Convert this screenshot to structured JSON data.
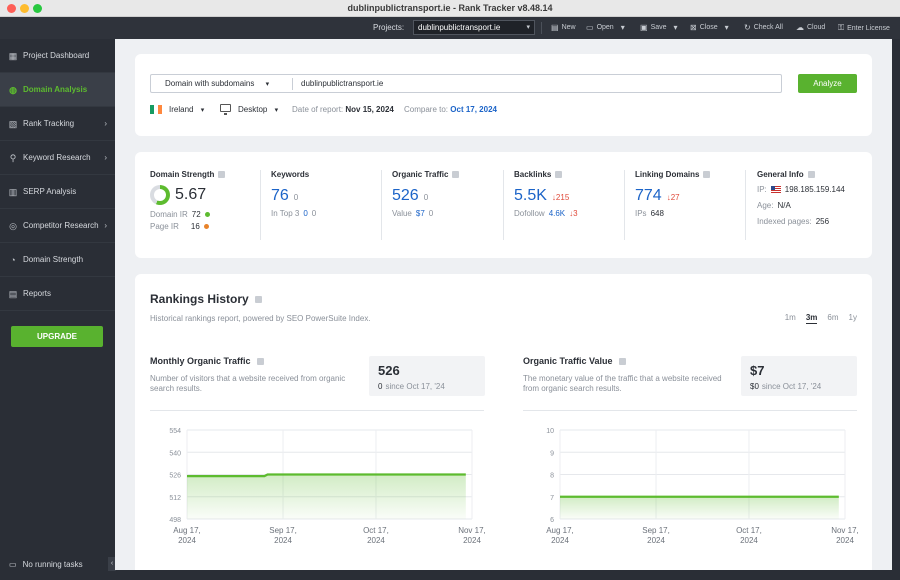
{
  "window": {
    "title": "dublinpublictransport.ie - Rank Tracker v8.48.14"
  },
  "toolbar": {
    "projects_label": "Projects:",
    "project_value": "dublinpublictransport.ie",
    "new": "New",
    "open": "Open",
    "save": "Save",
    "close": "Close",
    "check_all": "Check All",
    "cloud": "Cloud",
    "enter_license": "Enter License"
  },
  "sidebar": {
    "items": [
      {
        "label": "Project Dashboard",
        "icon": "dashboard-icon"
      },
      {
        "label": "Domain Analysis",
        "icon": "globe-icon",
        "active": true
      },
      {
        "label": "Rank Tracking",
        "icon": "chart-icon"
      },
      {
        "label": "Keyword Research",
        "icon": "search-icon"
      },
      {
        "label": "SERP Analysis",
        "icon": "bars-icon"
      },
      {
        "label": "Competitor Research",
        "icon": "target-icon"
      },
      {
        "label": "Domain Strength",
        "icon": "gauge-icon"
      },
      {
        "label": "Reports",
        "icon": "report-icon"
      }
    ],
    "upgrade": "UPGRADE",
    "running_tasks": "No running tasks"
  },
  "search": {
    "scope": "Domain with subdomains",
    "domain": "dublinpublictransport.ie",
    "analyze": "Analyze",
    "country": "Ireland",
    "device": "Desktop",
    "date_label": "Date of report:",
    "date_value": "Nov 15, 2024",
    "compare_label": "Compare to:",
    "compare_value": "Oct 17, 2024"
  },
  "metrics": {
    "domain_strength": {
      "title": "Domain Strength",
      "value": "5.67",
      "donut_fraction": 0.567,
      "domain_ir_label": "Domain IR",
      "domain_ir": "72",
      "page_ir_label": "Page IR",
      "page_ir": "16",
      "domain_ir_color": "#5dbb2f",
      "page_ir_color": "#e8832a"
    },
    "keywords": {
      "title": "Keywords",
      "value": "76",
      "delta": "0",
      "sub_label": "In Top 3",
      "sub_value": "0",
      "sub_delta": "0"
    },
    "organic_traffic": {
      "title": "Organic Traffic",
      "value": "526",
      "delta": "0",
      "sub_label": "Value",
      "sub_value": "$7",
      "sub_delta": "0"
    },
    "backlinks": {
      "title": "Backlinks",
      "value": "5.5K",
      "delta": "↓215",
      "sub_label": "Dofollow",
      "sub_value": "4.6K",
      "sub_delta": "↓3"
    },
    "linking_domains": {
      "title": "Linking Domains",
      "value": "774",
      "delta": "↓27",
      "sub_label": "IPs",
      "sub_value": "648"
    },
    "general_info": {
      "title": "General Info",
      "ip_label": "IP:",
      "ip": "198.185.159.144",
      "age_label": "Age:",
      "age": "N/A",
      "indexed_label": "Indexed pages:",
      "indexed": "256"
    }
  },
  "history": {
    "title": "Rankings History",
    "subtitle": "Historical rankings report, powered by SEO PowerSuite Index.",
    "ranges": [
      "1m",
      "3m",
      "6m",
      "1y"
    ],
    "selected_range": "3m",
    "traffic_panel": {
      "title": "Monthly Organic Traffic",
      "description": "Number of visitors that a website received from organic search results.",
      "stat_value": "526",
      "stat_delta": "0",
      "stat_since": "since Oct 17, '24"
    },
    "value_panel": {
      "title": "Organic Traffic Value",
      "description": "The monetary value of the traffic that a website received from organic search results.",
      "stat_value": "$7",
      "stat_delta": "$0",
      "stat_since": "since Oct 17, '24"
    }
  },
  "chart_data": [
    {
      "type": "area",
      "title": "Monthly Organic Traffic",
      "x": [
        "Aug 17, 2024",
        "Sep 17, 2024",
        "Oct 17, 2024",
        "Nov 17, 2024"
      ],
      "y_ticks": [
        498,
        512,
        526,
        540,
        554
      ],
      "ylim": [
        498,
        554
      ],
      "series": [
        {
          "points": [
            [
              "2024-08-17",
              525
            ],
            [
              "2024-09-11",
              525
            ],
            [
              "2024-09-12",
              526
            ],
            [
              "2024-11-15",
              526
            ]
          ],
          "color": "#5dbb2f"
        }
      ],
      "grid": true
    },
    {
      "type": "area",
      "title": "Organic Traffic Value",
      "x": [
        "Aug 17, 2024",
        "Sep 17, 2024",
        "Oct 17, 2024",
        "Nov 17, 2024"
      ],
      "y_ticks": [
        6,
        7,
        8,
        9,
        10
      ],
      "ylim": [
        6,
        10
      ],
      "series": [
        {
          "points": [
            [
              "2024-08-17",
              7
            ],
            [
              "2024-11-15",
              7
            ]
          ],
          "color": "#5dbb2f"
        }
      ],
      "grid": true
    }
  ]
}
